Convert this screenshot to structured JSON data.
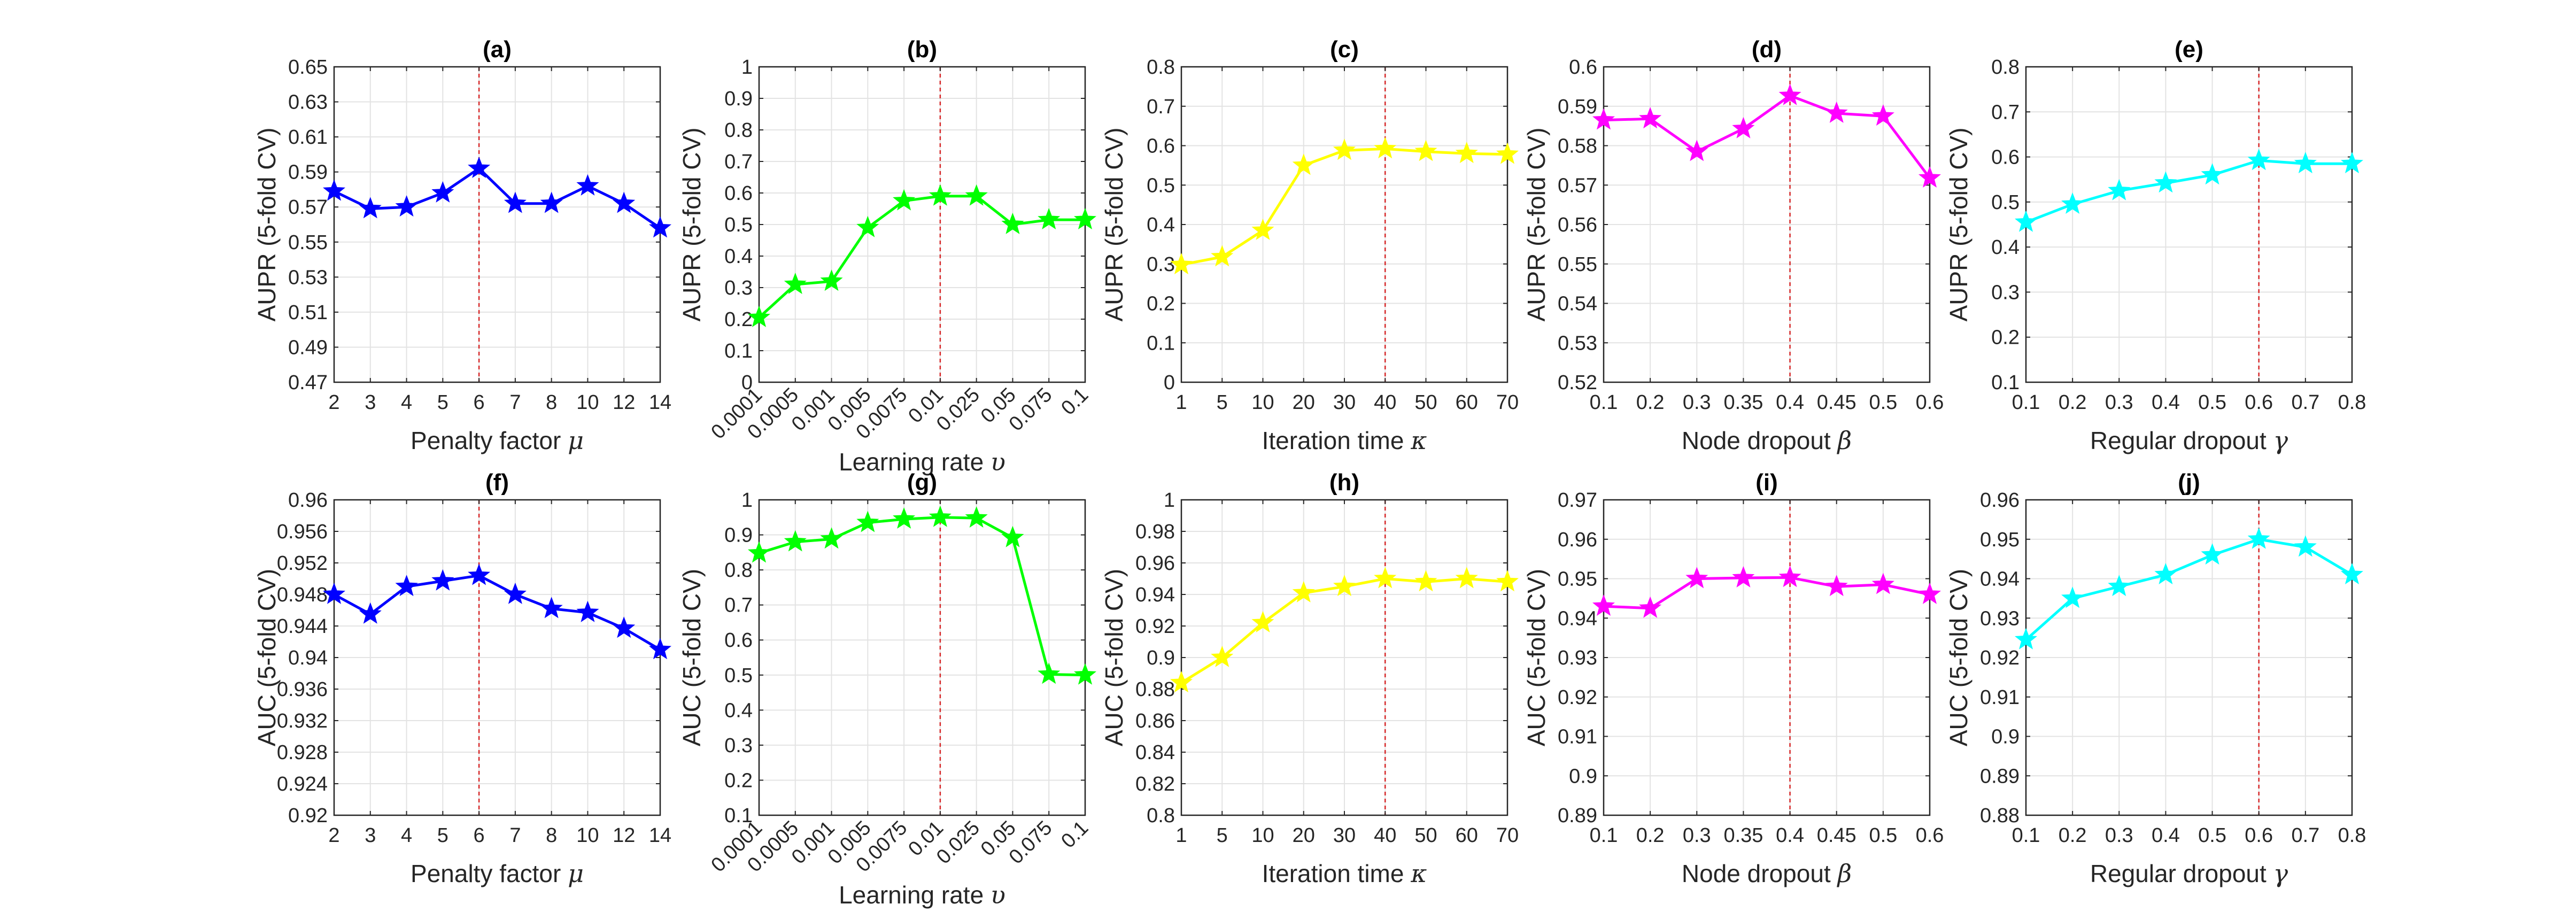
{
  "chart_data": [
    {
      "type": "line",
      "title": "(a)",
      "xlabel": "Penalty factor",
      "xsymbol": "μ",
      "ylabel": "AUPR (5-fold CV)",
      "color": "#0000ff",
      "x": [
        "2",
        "3",
        "4",
        "5",
        "6",
        "7",
        "8",
        "10",
        "12",
        "14"
      ],
      "values": [
        0.579,
        0.569,
        0.57,
        0.578,
        0.592,
        0.572,
        0.572,
        0.582,
        0.572,
        0.558
      ],
      "ylim": [
        0.47,
        0.65
      ],
      "yticks": [
        "0.47",
        "0.49",
        "0.51",
        "0.53",
        "0.55",
        "0.57",
        "0.59",
        "0.61",
        "0.63",
        "0.65"
      ],
      "vline": "6",
      "grid": true,
      "rotate_x": false
    },
    {
      "type": "line",
      "title": "(b)",
      "xlabel": "Learning rate",
      "xsymbol": "υ",
      "ylabel": "AUPR (5-fold CV)",
      "color": "#00ff00",
      "x": [
        "0.0001",
        "0.0005",
        "0.001",
        "0.005",
        "0.0075",
        "0.01",
        "0.025",
        "0.05",
        "0.075",
        "0.1"
      ],
      "values": [
        0.205,
        0.31,
        0.32,
        0.49,
        0.575,
        0.59,
        0.59,
        0.5,
        0.515,
        0.515
      ],
      "ylim": [
        0,
        1
      ],
      "yticks": [
        "0",
        "0.1",
        "0.2",
        "0.3",
        "0.4",
        "0.5",
        "0.6",
        "0.7",
        "0.8",
        "0.9",
        "1"
      ],
      "vline": "0.01",
      "grid": true,
      "rotate_x": true
    },
    {
      "type": "line",
      "title": "(c)",
      "xlabel": "Iteration time",
      "xsymbol": "κ",
      "ylabel": "AUPR (5-fold CV)",
      "color": "#ffff00",
      "x": [
        "1",
        "5",
        "10",
        "20",
        "30",
        "40",
        "50",
        "60",
        "70"
      ],
      "values": [
        0.298,
        0.318,
        0.385,
        0.55,
        0.588,
        0.592,
        0.585,
        0.58,
        0.578
      ],
      "ylim": [
        0,
        0.8
      ],
      "yticks": [
        "0",
        "0.1",
        "0.2",
        "0.3",
        "0.4",
        "0.5",
        "0.6",
        "0.7",
        "0.8"
      ],
      "vline": "40",
      "grid": true,
      "rotate_x": false
    },
    {
      "type": "line",
      "title": "(d)",
      "xlabel": "Node dropout",
      "xsymbol": "β",
      "ylabel": "AUPR (5-fold CV)",
      "color": "#ff00ff",
      "x": [
        "0.1",
        "0.2",
        "0.3",
        "0.35",
        "0.4",
        "0.45",
        "0.5",
        "0.6"
      ],
      "values": [
        0.5865,
        0.5868,
        0.5785,
        0.5843,
        0.5927,
        0.5882,
        0.5875,
        0.5718
      ],
      "ylim": [
        0.52,
        0.6
      ],
      "yticks": [
        "0.52",
        "0.53",
        "0.54",
        "0.55",
        "0.56",
        "0.57",
        "0.58",
        "0.59",
        "0.6"
      ],
      "vline": "0.4",
      "grid": true,
      "rotate_x": false
    },
    {
      "type": "line",
      "title": "(e)",
      "xlabel": "Regular dropout",
      "xsymbol": "γ",
      "ylabel": "AUPR (5-fold CV)",
      "color": "#00ffff",
      "x": [
        "0.1",
        "0.2",
        "0.3",
        "0.4",
        "0.5",
        "0.6",
        "0.7",
        "0.8"
      ],
      "values": [
        0.455,
        0.495,
        0.525,
        0.542,
        0.56,
        0.592,
        0.585,
        0.585
      ],
      "ylim": [
        0.1,
        0.8
      ],
      "yticks": [
        "0.1",
        "0.2",
        "0.3",
        "0.4",
        "0.5",
        "0.6",
        "0.7",
        "0.8"
      ],
      "vline": "0.6",
      "grid": true,
      "rotate_x": false
    },
    {
      "type": "line",
      "title": "(f)",
      "xlabel": "Penalty factor",
      "xsymbol": "μ",
      "ylabel": "AUC (5-fold CV)",
      "color": "#0000ff",
      "x": [
        "2",
        "3",
        "4",
        "5",
        "6",
        "7",
        "8",
        "10",
        "12",
        "14"
      ],
      "values": [
        0.948,
        0.9455,
        0.949,
        0.9497,
        0.9504,
        0.948,
        0.9462,
        0.9457,
        0.9437,
        0.941
      ],
      "ylim": [
        0.92,
        0.96
      ],
      "yticks": [
        "0.92",
        "0.924",
        "0.928",
        "0.932",
        "0.936",
        "0.94",
        "0.944",
        "0.948",
        "0.952",
        "0.956",
        "0.96"
      ],
      "vline": "6",
      "grid": true,
      "rotate_x": false
    },
    {
      "type": "line",
      "title": "(g)",
      "xlabel": "Learning rate",
      "xsymbol": "υ",
      "ylabel": "AUC (5-fold CV)",
      "color": "#00ff00",
      "x": [
        "0.0001",
        "0.0005",
        "0.001",
        "0.005",
        "0.0075",
        "0.01",
        "0.025",
        "0.05",
        "0.075",
        "0.1"
      ],
      "values": [
        0.848,
        0.88,
        0.888,
        0.935,
        0.945,
        0.95,
        0.948,
        0.892,
        0.502,
        0.5
      ],
      "ylim": [
        0.1,
        1
      ],
      "yticks": [
        "0.1",
        "0.2",
        "0.3",
        "0.4",
        "0.5",
        "0.6",
        "0.7",
        "0.8",
        "0.9",
        "1"
      ],
      "vline": "0.01",
      "grid": true,
      "rotate_x": true
    },
    {
      "type": "line",
      "title": "(h)",
      "xlabel": "Iteration time",
      "xsymbol": "κ",
      "ylabel": "AUC (5-fold CV)",
      "color": "#ffff00",
      "x": [
        "1",
        "5",
        "10",
        "20",
        "30",
        "40",
        "50",
        "60",
        "70"
      ],
      "values": [
        0.884,
        0.9,
        0.922,
        0.941,
        0.945,
        0.95,
        0.948,
        0.95,
        0.948
      ],
      "ylim": [
        0.8,
        1
      ],
      "yticks": [
        "0.8",
        "0.82",
        "0.84",
        "0.86",
        "0.88",
        "0.9",
        "0.92",
        "0.94",
        "0.96",
        "0.98",
        "1"
      ],
      "vline": "40",
      "grid": true,
      "rotate_x": false
    },
    {
      "type": "line",
      "title": "(i)",
      "xlabel": "Node dropout",
      "xsymbol": "β",
      "ylabel": "AUC (5-fold CV)",
      "color": "#ff00ff",
      "x": [
        "0.1",
        "0.2",
        "0.3",
        "0.35",
        "0.4",
        "0.45",
        "0.5",
        "0.6"
      ],
      "values": [
        0.943,
        0.9425,
        0.95,
        0.9502,
        0.9503,
        0.948,
        0.9485,
        0.946
      ],
      "ylim": [
        0.89,
        0.97
      ],
      "yticks": [
        "0.89",
        "0.9",
        "0.91",
        "0.92",
        "0.93",
        "0.94",
        "0.95",
        "0.96",
        "0.97"
      ],
      "vline": "0.4",
      "grid": true,
      "rotate_x": false
    },
    {
      "type": "line",
      "title": "(j)",
      "xlabel": "Regular dropout",
      "xsymbol": "γ",
      "ylabel": "AUC (5-fold CV)",
      "color": "#00ffff",
      "x": [
        "0.1",
        "0.2",
        "0.3",
        "0.4",
        "0.5",
        "0.6",
        "0.7",
        "0.8"
      ],
      "values": [
        0.9245,
        0.935,
        0.938,
        0.941,
        0.946,
        0.95,
        0.948,
        0.941
      ],
      "ylim": [
        0.88,
        0.96
      ],
      "yticks": [
        "0.88",
        "0.89",
        "0.9",
        "0.91",
        "0.92",
        "0.93",
        "0.94",
        "0.95",
        "0.96"
      ],
      "vline": "0.6",
      "grid": true,
      "rotate_x": false
    }
  ]
}
